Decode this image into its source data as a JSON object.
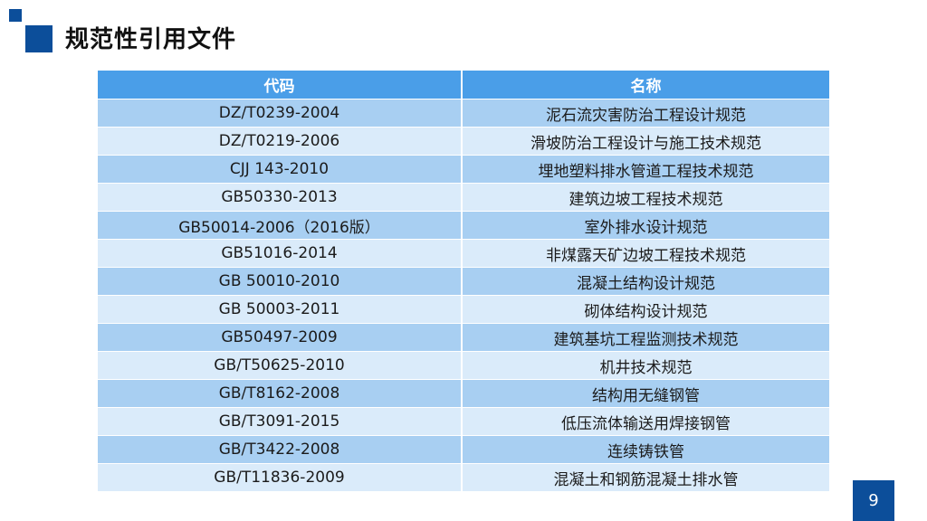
{
  "slide": {
    "title": "规范性引用文件",
    "page_number": "9",
    "colors": {
      "accent_dark": "#0c4e9a",
      "header_bg": "#4a9ee8",
      "row_dark": "#a8cff2",
      "row_light": "#daebfa"
    }
  },
  "table": {
    "headers": [
      "代码",
      "名称"
    ],
    "rows": [
      {
        "code": "DZ/T0239-2004",
        "name": "泥石流灾害防治工程设计规范"
      },
      {
        "code": "DZ/T0219-2006",
        "name": "滑坡防治工程设计与施工技术规范"
      },
      {
        "code": "CJJ 143-2010",
        "name": "埋地塑料排水管道工程技术规范"
      },
      {
        "code": "GB50330-2013",
        "name": "建筑边坡工程技术规范"
      },
      {
        "code": "GB50014-2006（2016版）",
        "name": "室外排水设计规范"
      },
      {
        "code": "GB51016-2014",
        "name": "非煤露天矿边坡工程技术规范"
      },
      {
        "code": "GB 50010-2010",
        "name": "混凝土结构设计规范"
      },
      {
        "code": "GB 50003-2011",
        "name": "砌体结构设计规范"
      },
      {
        "code": "GB50497-2009",
        "name": "建筑基坑工程监测技术规范"
      },
      {
        "code": "GB/T50625-2010",
        "name": "机井技术规范"
      },
      {
        "code": "GB/T8162-2008",
        "name": "结构用无缝钢管"
      },
      {
        "code": "GB/T3091-2015",
        "name": "低压流体输送用焊接钢管"
      },
      {
        "code": "GB/T3422-2008",
        "name": "连续铸铁管"
      },
      {
        "code": "GB/T11836-2009",
        "name": "混凝土和钢筋混凝土排水管"
      }
    ]
  }
}
